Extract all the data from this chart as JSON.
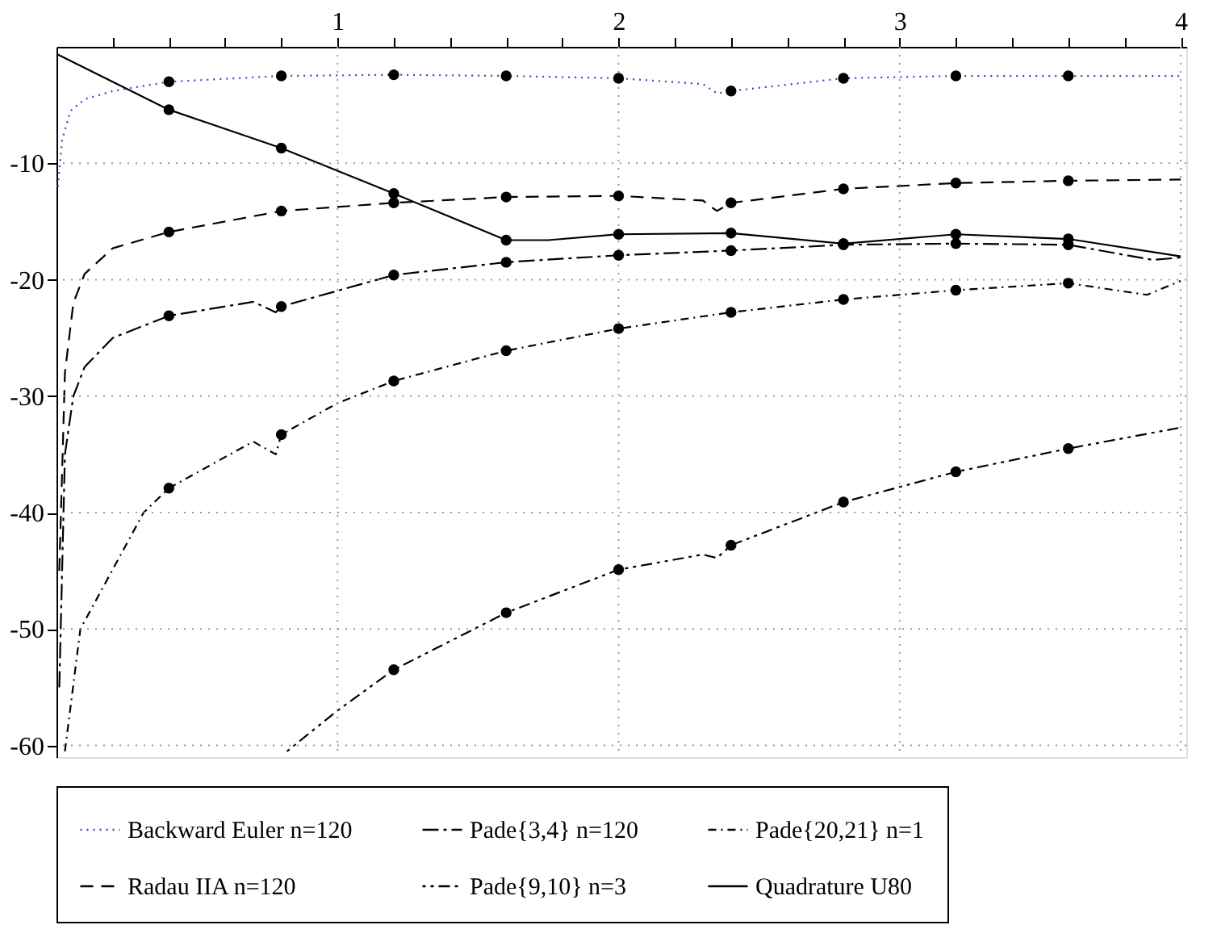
{
  "chart_data": {
    "type": "line",
    "xlim": [
      0,
      4.02
    ],
    "ylim": [
      -61,
      0
    ],
    "xticks": [
      {
        "value": 0.2,
        "label": null
      },
      {
        "value": 0.4,
        "label": null
      },
      {
        "value": 0.6,
        "label": null
      },
      {
        "value": 0.8,
        "label": null
      },
      1,
      {
        "value": 1.2,
        "label": null
      },
      {
        "value": 1.4,
        "label": null
      },
      {
        "value": 1.6,
        "label": null
      },
      {
        "value": 1.8,
        "label": null
      },
      2,
      {
        "value": 2.2,
        "label": null
      },
      {
        "value": 2.4,
        "label": null
      },
      {
        "value": 2.6,
        "label": null
      },
      {
        "value": 2.8,
        "label": null
      },
      3,
      {
        "value": 3.2,
        "label": null
      },
      {
        "value": 3.4,
        "label": null
      },
      {
        "value": 3.6,
        "label": null
      },
      {
        "value": 3.8,
        "label": null
      },
      4
    ],
    "yticks": [
      -60,
      -50,
      -40,
      -30,
      -20,
      -10
    ],
    "grid": true,
    "legend": "bottom",
    "marker": "none",
    "series": [
      {
        "name": "Backward Euler n=120",
        "color": "#4040c0",
        "line_style": "dotted",
        "x": [
          0.005,
          0.02,
          0.05,
          0.1,
          0.2,
          0.4,
          0.8,
          1.2,
          1.6,
          2.0,
          2.3,
          2.35,
          2.4,
          2.8,
          3.2,
          3.6,
          4.0
        ],
        "values": [
          -12,
          -8,
          -5.5,
          -4.5,
          -3.8,
          -3.0,
          -2.5,
          -2.4,
          -2.5,
          -2.7,
          -3.2,
          -4.0,
          -3.8,
          -2.7,
          -2.5,
          -2.5,
          -2.5
        ]
      },
      {
        "name": "Pade{3,4} n=120",
        "color": "#000000",
        "line_style": "longdashdot",
        "x": [
          0.01,
          0.03,
          0.06,
          0.1,
          0.2,
          0.4,
          0.7,
          0.78,
          0.8,
          1.2,
          1.6,
          2.0,
          2.4,
          2.8,
          3.2,
          3.6,
          3.9,
          4.0
        ],
        "values": [
          -55,
          -35,
          -30,
          -27.5,
          -25,
          -23.1,
          -21.9,
          -22.8,
          -22.3,
          -19.6,
          -18.5,
          -17.9,
          -17.5,
          -17.0,
          -16.9,
          -17.0,
          -18.3,
          -18.1
        ]
      },
      {
        "name": "Pade{20,21} n=1",
        "color": "#000000",
        "line_style": "dashdot",
        "x": [
          0.03,
          0.085,
          0.31,
          0.4,
          0.7,
          0.78,
          0.8,
          1.0,
          1.2,
          1.6,
          2.0,
          2.4,
          2.8,
          3.2,
          3.6,
          3.88,
          4.0
        ],
        "values": [
          -60.5,
          -50,
          -40,
          -37.9,
          -33.9,
          -35.0,
          -33.3,
          -30.6,
          -28.7,
          -26.1,
          -24.2,
          -22.8,
          -21.7,
          -20.9,
          -20.3,
          -21.3,
          -20.1
        ]
      },
      {
        "name": "Radau IIA n=120",
        "color": "#000000",
        "line_style": "dashed",
        "x": [
          0.01,
          0.03,
          0.06,
          0.1,
          0.2,
          0.4,
          0.8,
          1.2,
          1.6,
          2.0,
          2.3,
          2.35,
          2.4,
          2.8,
          3.2,
          3.6,
          4.0
        ],
        "values": [
          -45,
          -28,
          -22,
          -19.5,
          -17.3,
          -15.9,
          -14.1,
          -13.4,
          -12.9,
          -12.8,
          -13.2,
          -14.1,
          -13.4,
          -12.2,
          -11.7,
          -11.5,
          -11.4
        ]
      },
      {
        "name": "Pade{9,10} n=3",
        "color": "#000000",
        "line_style": "dashdotdot",
        "x": [
          0.82,
          1.0,
          1.2,
          1.6,
          2.0,
          2.3,
          2.35,
          2.4,
          2.8,
          3.2,
          3.6,
          4.0
        ],
        "values": [
          -60.5,
          -57.0,
          -53.5,
          -48.6,
          -44.9,
          -43.6,
          -43.9,
          -42.8,
          -39.1,
          -36.5,
          -34.5,
          -32.7
        ]
      },
      {
        "name": "Quadrature U80",
        "color": "#000000",
        "line_style": "solid",
        "x": [
          0,
          0.4,
          0.8,
          1.2,
          1.6,
          1.75,
          2.0,
          2.4,
          2.8,
          3.2,
          3.6,
          4.0
        ],
        "values": [
          -0.6,
          -5.4,
          -8.7,
          -12.6,
          -16.6,
          -16.6,
          -16.1,
          -16.0,
          -16.9,
          -16.1,
          -16.5,
          -18.0
        ]
      },
      {
        "type": "scatter",
        "marker": "circle",
        "color": "#000000",
        "x": [
          0.4,
          0.8,
          1.2,
          1.6,
          2.0,
          2.4,
          2.8,
          3.2,
          3.6
        ],
        "values": [
          -3.0,
          -2.5,
          -2.4,
          -2.5,
          -2.7,
          -3.8,
          -2.7,
          -2.5,
          -2.5
        ]
      },
      {
        "type": "scatter",
        "marker": "circle",
        "color": "#000000",
        "x": [
          0.4,
          0.8,
          1.2,
          1.6,
          2.0,
          2.4,
          2.8,
          3.2,
          3.6
        ],
        "values": [
          -23.1,
          -22.3,
          -19.6,
          -18.5,
          -17.9,
          -17.5,
          -17.0,
          -16.9,
          -17.0
        ]
      },
      {
        "type": "scatter",
        "marker": "circle",
        "color": "#000000",
        "x": [
          0.4,
          0.8,
          1.2,
          1.6,
          2.0,
          2.4,
          2.8,
          3.2,
          3.6
        ],
        "values": [
          -37.9,
          -33.3,
          -28.7,
          -26.1,
          -24.2,
          -22.8,
          -21.7,
          -20.9,
          -20.3
        ]
      },
      {
        "type": "scatter",
        "marker": "circle",
        "color": "#000000",
        "x": [
          0.4,
          0.8,
          1.2,
          1.6,
          2.0,
          2.4,
          2.8,
          3.2,
          3.6
        ],
        "values": [
          -15.9,
          -14.1,
          -13.4,
          -12.9,
          -12.8,
          -13.4,
          -12.2,
          -11.7,
          -11.5
        ]
      },
      {
        "type": "scatter",
        "marker": "circle",
        "color": "#000000",
        "x": [
          1.2,
          1.6,
          2.0,
          2.4,
          2.8,
          3.2,
          3.6
        ],
        "values": [
          -53.5,
          -48.6,
          -44.9,
          -42.8,
          -39.1,
          -36.5,
          -34.5
        ]
      },
      {
        "type": "scatter",
        "marker": "circle",
        "color": "#000000",
        "x": [
          0.4,
          0.8,
          1.2,
          1.6,
          2.0,
          2.4,
          2.8,
          3.2,
          3.6
        ],
        "values": [
          -5.4,
          -8.7,
          -12.6,
          -16.6,
          -16.1,
          -16.0,
          -16.9,
          -16.1,
          -16.5
        ]
      }
    ]
  }
}
